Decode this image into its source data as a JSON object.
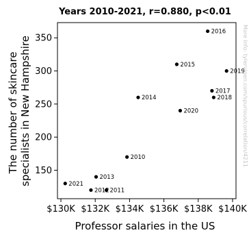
{
  "chart_data": {
    "type": "scatter",
    "title": "Years 2010-2021, r=0.880, p<0.01",
    "xlabel": "Professor salaries in the US",
    "ylabel": "The number of skincare specialists in New Hampshire",
    "ylabel_lines": [
      "The number of skincare",
      "specialists in New Hampshire"
    ],
    "xlim": [
      129800,
      140200
    ],
    "ylim": [
      107,
      373
    ],
    "xticks": [
      130000,
      132000,
      134000,
      136000,
      138000,
      140000
    ],
    "xtick_labels": [
      "$130K",
      "$132K",
      "$134K",
      "$136K",
      "$138K",
      "$140K"
    ],
    "yticks": [
      150,
      200,
      250,
      300,
      350
    ],
    "ytick_labels": [
      "150",
      "200",
      "250",
      "300",
      "350"
    ],
    "grid": false,
    "point_color": "#000000",
    "points": [
      {
        "label": "2010",
        "x": 133850,
        "y": 170
      },
      {
        "label": "2011",
        "x": 132650,
        "y": 120
      },
      {
        "label": "2012",
        "x": 131750,
        "y": 120
      },
      {
        "label": "2013",
        "x": 132050,
        "y": 140
      },
      {
        "label": "2014",
        "x": 134500,
        "y": 260
      },
      {
        "label": "2015",
        "x": 136750,
        "y": 310
      },
      {
        "label": "2016",
        "x": 138550,
        "y": 360
      },
      {
        "label": "2017",
        "x": 138800,
        "y": 270
      },
      {
        "label": "2018",
        "x": 138900,
        "y": 260
      },
      {
        "label": "2019",
        "x": 139650,
        "y": 300
      },
      {
        "label": "2020",
        "x": 136950,
        "y": 240
      },
      {
        "label": "2021",
        "x": 130250,
        "y": 130
      }
    ]
  },
  "watermark": "More info: tylervigen.com/spurious/correlation/4211"
}
